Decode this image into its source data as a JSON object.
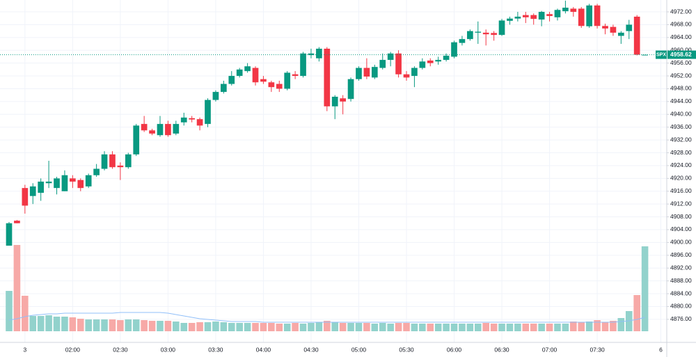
{
  "chart_data": {
    "type": "candlestick",
    "symbol": "SPX",
    "last_value": 4958.62,
    "up_color": "#089981",
    "down_color": "#f23645",
    "volume_up_color": "#92d2cc",
    "volume_down_color": "#f7a9a7",
    "volume_ma_color": "#90bff9",
    "grid": true,
    "categories": [
      null,
      null,
      "3",
      null,
      null,
      null,
      null,
      null,
      "02:00",
      null,
      null,
      null,
      null,
      null,
      "02:30",
      null,
      null,
      null,
      null,
      null,
      "03:00",
      null,
      null,
      null,
      null,
      null,
      "03:30",
      null,
      null,
      null,
      null,
      null,
      "04:00",
      null,
      null,
      null,
      null,
      null,
      "04:30",
      null,
      null,
      null,
      null,
      null,
      "05:00",
      null,
      null,
      null,
      null,
      null,
      "05:30",
      null,
      null,
      null,
      null,
      null,
      "06:00",
      null,
      null,
      null,
      null,
      null,
      "06:30",
      null,
      null,
      null,
      null,
      null,
      "07:00",
      null,
      null,
      null,
      null,
      null,
      "07:30",
      null,
      null,
      null,
      null,
      null,
      null,
      null,
      "6"
    ],
    "open": [
      4899,
      4906.8,
      4917,
      4914.5,
      4915.5,
      4918.5,
      4917,
      4916,
      4920,
      4919.5,
      4917.5,
      4921,
      4923,
      4927.5,
      4924,
      4923.5,
      4927.5,
      4937,
      4935,
      4933.5,
      4937,
      4934,
      4937.5,
      4938.8,
      4938.5,
      4937,
      4944.5,
      4947,
      4949.5,
      4952,
      4953.5,
      4954.5,
      4951,
      4950,
      4949.5,
      4948,
      4952.5,
      4952,
      4958.5,
      4957.5,
      4960.5,
      4942.5,
      4945,
      4944.8,
      4951,
      4954.5,
      4951.5,
      4954.5,
      4957,
      4959,
      4952.5,
      4952,
      4954.5,
      4956.8,
      4956.5,
      4957,
      4958,
      4962.3,
      4963.5,
      4965.5,
      4965.5,
      4965.4,
      4964.8,
      4969.2,
      4969.9,
      4971,
      4971,
      4969.6,
      4971.3,
      4970.3,
      4972.2,
      4973,
      4973,
      4967.5,
      4974,
      4967.6,
      4967.3,
      4964.5,
      4966,
      4970.5,
      4958.62,
      null,
      null
    ],
    "high": [
      4906.4,
      4907,
      4918,
      4918.5,
      4920,
      4925.5,
      4920.5,
      4922.5,
      4921,
      4920,
      4921.5,
      4924.5,
      4928.5,
      4928.5,
      4925,
      4928,
      4937,
      4939.5,
      4935.5,
      4939.5,
      4938,
      4938,
      4940.5,
      4939.5,
      4939,
      4945,
      4947.5,
      4950.5,
      4953.5,
      4954.5,
      4956,
      4955,
      4952,
      4950.5,
      4950.5,
      4953.5,
      4953.5,
      4959.5,
      4960.5,
      4961,
      4961,
      4946,
      4946,
      4951.5,
      4955,
      4957.5,
      4955.5,
      4959,
      4959.5,
      4960,
      4953.5,
      4955,
      4957.5,
      4957.5,
      4958,
      4959,
      4963,
      4964.5,
      4966.5,
      4969,
      4966.5,
      4966,
      4969.8,
      4970.5,
      4972,
      4972,
      4971.5,
      4972.3,
      4972,
      4973,
      4975.5,
      4973.5,
      4973.5,
      4974.5,
      4974.5,
      4968.3,
      4968,
      4966,
      4969.5,
      4971,
      4958.62,
      null,
      null
    ],
    "low": [
      4899,
      4906,
      4909,
      4912,
      4913,
      4917,
      4915,
      4916,
      4917,
      4916,
      4917,
      4920.5,
      4922.5,
      4923,
      4919.5,
      4923,
      4927,
      4934.5,
      4933.5,
      4933,
      4933,
      4933.5,
      4936.5,
      4937.5,
      4935,
      4936,
      4944,
      4946.5,
      4949,
      4951.5,
      4953,
      4949,
      4949.5,
      4947,
      4947,
      4947.5,
      4951,
      4951.5,
      4957.5,
      4956.5,
      4941,
      4938.5,
      4940,
      4944,
      4950.5,
      4951,
      4951,
      4954,
      4955,
      4951.5,
      4950.5,
      4948.5,
      4954,
      4955,
      4955.5,
      4956.5,
      4957.5,
      4961.5,
      4963,
      4962,
      4961.5,
      4963,
      4964.5,
      4968,
      4969,
      4968.5,
      4968,
      4967.5,
      4969,
      4969.3,
      4971.5,
      4970.5,
      4967,
      4967,
      4966.8,
      4965,
      4964.5,
      4962,
      4963.5,
      4958.4,
      4958.62,
      null,
      null
    ],
    "close": [
      4906,
      4906,
      4911.5,
      4917.5,
      4919,
      4919,
      4920,
      4921,
      4919,
      4917,
      4921,
      4923,
      4927.5,
      4923.5,
      4923.5,
      4927.5,
      4936.5,
      4935,
      4934,
      4937,
      4933.5,
      4937,
      4939,
      4938.4,
      4936.5,
      4944.5,
      4947,
      4949.5,
      4952,
      4954,
      4955,
      4950,
      4950.2,
      4948.5,
      4948,
      4953,
      4952,
      4959,
      4959,
      4960.5,
      4942.5,
      4945.5,
      4944,
      4951,
      4954.5,
      4951.8,
      4954.8,
      4957,
      4959,
      4952.5,
      4951.5,
      4954.5,
      4956.5,
      4956,
      4957,
      4958.3,
      4962.5,
      4963.5,
      4966,
      4965.8,
      4965,
      4964.8,
      4969.3,
      4969.9,
      4970.5,
      4970.3,
      4969.8,
      4972,
      4970.7,
      4972.6,
      4973.3,
      4972,
      4967.6,
      4974,
      4967.6,
      4966.8,
      4965.5,
      4965.5,
      4968,
      4958.62,
      4958.62,
      null,
      null
    ],
    "volume": [
      58,
      124,
      51,
      22,
      22,
      23,
      21,
      21,
      20,
      18,
      17,
      17,
      17,
      17,
      16,
      17,
      17,
      16,
      15,
      15,
      15,
      14,
      12,
      12,
      13,
      13,
      14,
      13,
      12,
      12,
      12,
      12,
      12,
      12,
      11,
      11,
      12,
      11,
      12,
      13,
      15,
      13,
      12,
      12,
      12,
      12,
      11,
      12,
      11,
      12,
      12,
      11,
      11,
      11,
      11,
      11,
      11,
      11,
      11,
      11,
      12,
      11,
      11,
      11,
      11,
      11,
      11,
      11,
      11,
      11,
      11,
      14,
      13,
      14,
      16,
      13,
      15,
      19,
      29,
      52,
      122,
      null,
      null
    ],
    "volume_ma": [
      16,
      18,
      21,
      23,
      24,
      25,
      25,
      26,
      26,
      26,
      26,
      26,
      26,
      26,
      27,
      27,
      27,
      27,
      27,
      27,
      26,
      24,
      22,
      20,
      18,
      17,
      16,
      15,
      14,
      14,
      14,
      14,
      13,
      13,
      13,
      13,
      13,
      13,
      13,
      13,
      13,
      13,
      13,
      13,
      13,
      13,
      13,
      13,
      13,
      13,
      13,
      13,
      13,
      13,
      13,
      13,
      13,
      13,
      13,
      13,
      13,
      13,
      13,
      13,
      13,
      13,
      13,
      13,
      13,
      13,
      13,
      13,
      13,
      13,
      13,
      13,
      13,
      14,
      15,
      17,
      20,
      null,
      null
    ],
    "ylim": [
      4868.8,
      4975.7
    ],
    "yticks": [
      {
        "value": 4876,
        "label": "4876.00"
      },
      {
        "value": 4880,
        "label": "4880.00"
      },
      {
        "value": 4884,
        "label": "4884.00"
      },
      {
        "value": 4888,
        "label": "4888.00"
      },
      {
        "value": 4892,
        "label": "4892.00"
      },
      {
        "value": 4896,
        "label": "4896.00"
      },
      {
        "value": 4900,
        "label": "4900.00"
      },
      {
        "value": 4904,
        "label": "4904.00"
      },
      {
        "value": 4908,
        "label": "4908.00"
      },
      {
        "value": 4912,
        "label": "4912.00"
      },
      {
        "value": 4916,
        "label": "4916.00"
      },
      {
        "value": 4920,
        "label": "4920.00"
      },
      {
        "value": 4924,
        "label": "4924.00"
      },
      {
        "value": 4928,
        "label": "4928.00"
      },
      {
        "value": 4932,
        "label": "4932.00"
      },
      {
        "value": 4936,
        "label": "4936.00"
      },
      {
        "value": 4940,
        "label": "4940.00"
      },
      {
        "value": 4944,
        "label": "4944.00"
      },
      {
        "value": 4948,
        "label": "4948.00"
      },
      {
        "value": 4952,
        "label": "4952.00"
      },
      {
        "value": 4956,
        "label": "4956.00"
      },
      {
        "value": 4960,
        "label": "4960.00"
      },
      {
        "value": 4964,
        "label": "4964.00"
      },
      {
        "value": 4968,
        "label": "4968.00"
      },
      {
        "value": 4972,
        "label": "4972.00"
      }
    ]
  }
}
